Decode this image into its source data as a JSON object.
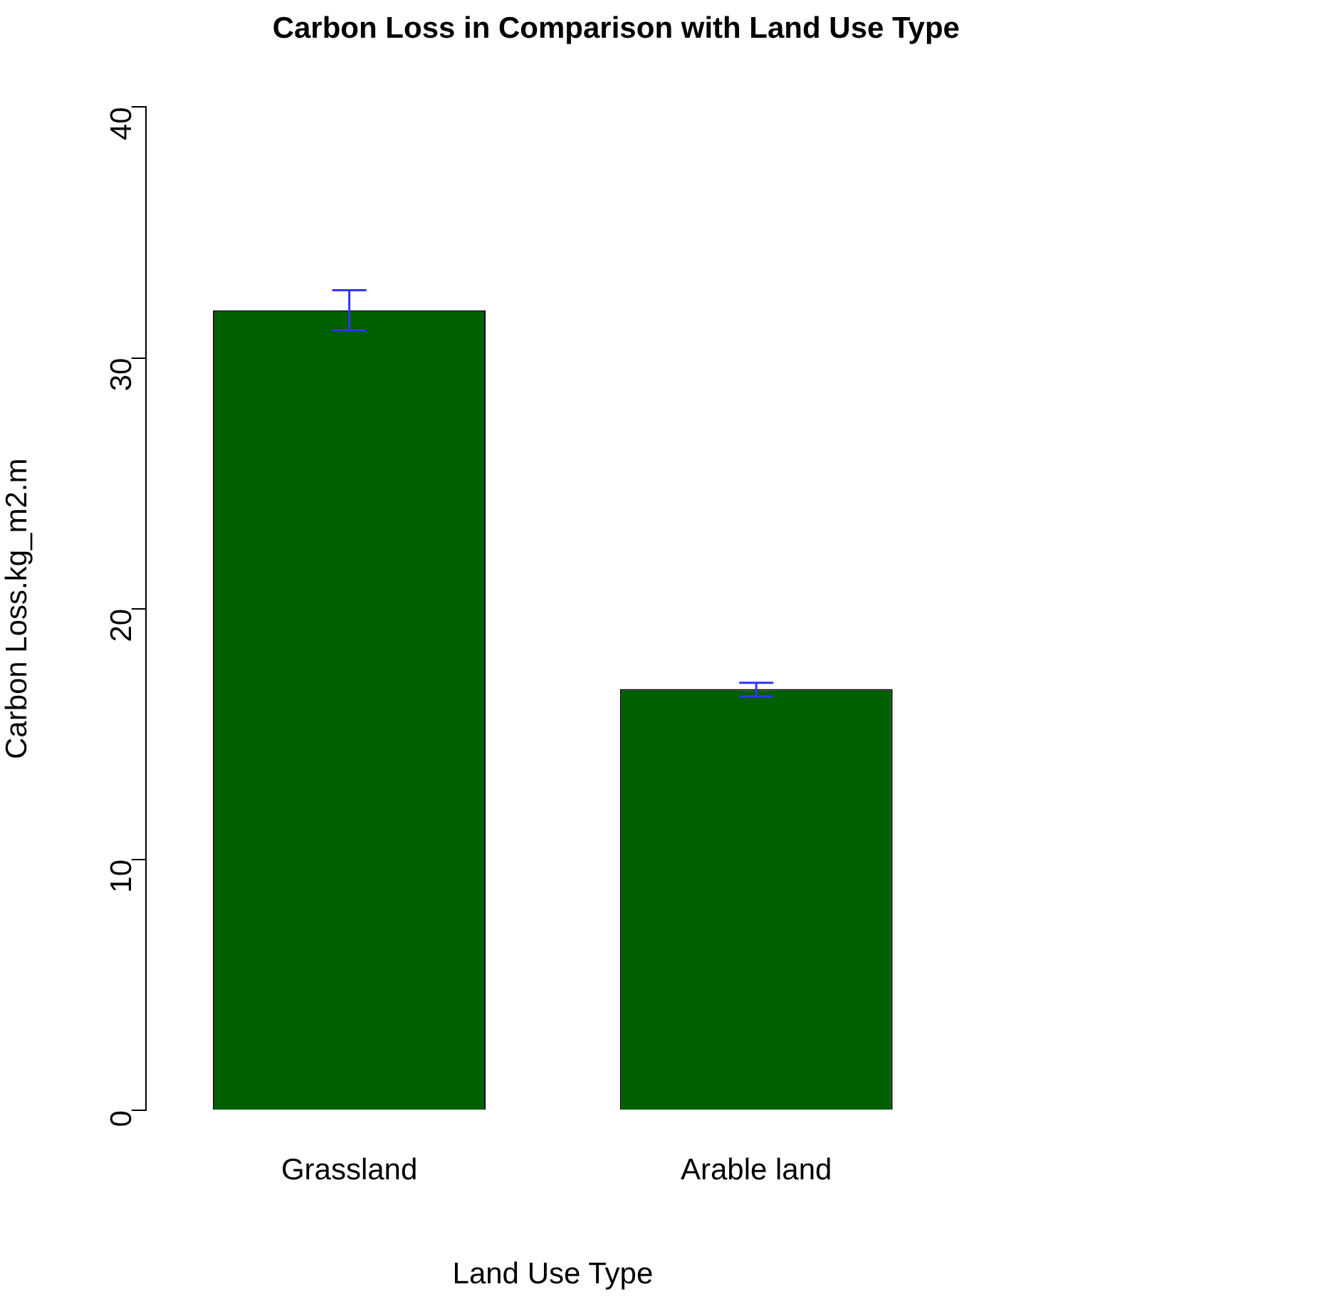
{
  "chart_data": {
    "type": "bar",
    "title": "Carbon Loss in Comparison with Land Use Type",
    "xlabel": "Land Use Type",
    "ylabel": "Carbon Loss.kg_m2.m",
    "categories": [
      "Grassland",
      "Arable land"
    ],
    "values": [
      31.9,
      16.8
    ],
    "color": "#006000",
    "errors": [
      [
        31.1,
        32.7
      ],
      [
        16.5,
        17.05
      ]
    ],
    "ylim": [
      0,
      40
    ],
    "yticks": [
      0,
      10,
      20,
      30,
      40
    ],
    "grid": false,
    "legend": false
  }
}
